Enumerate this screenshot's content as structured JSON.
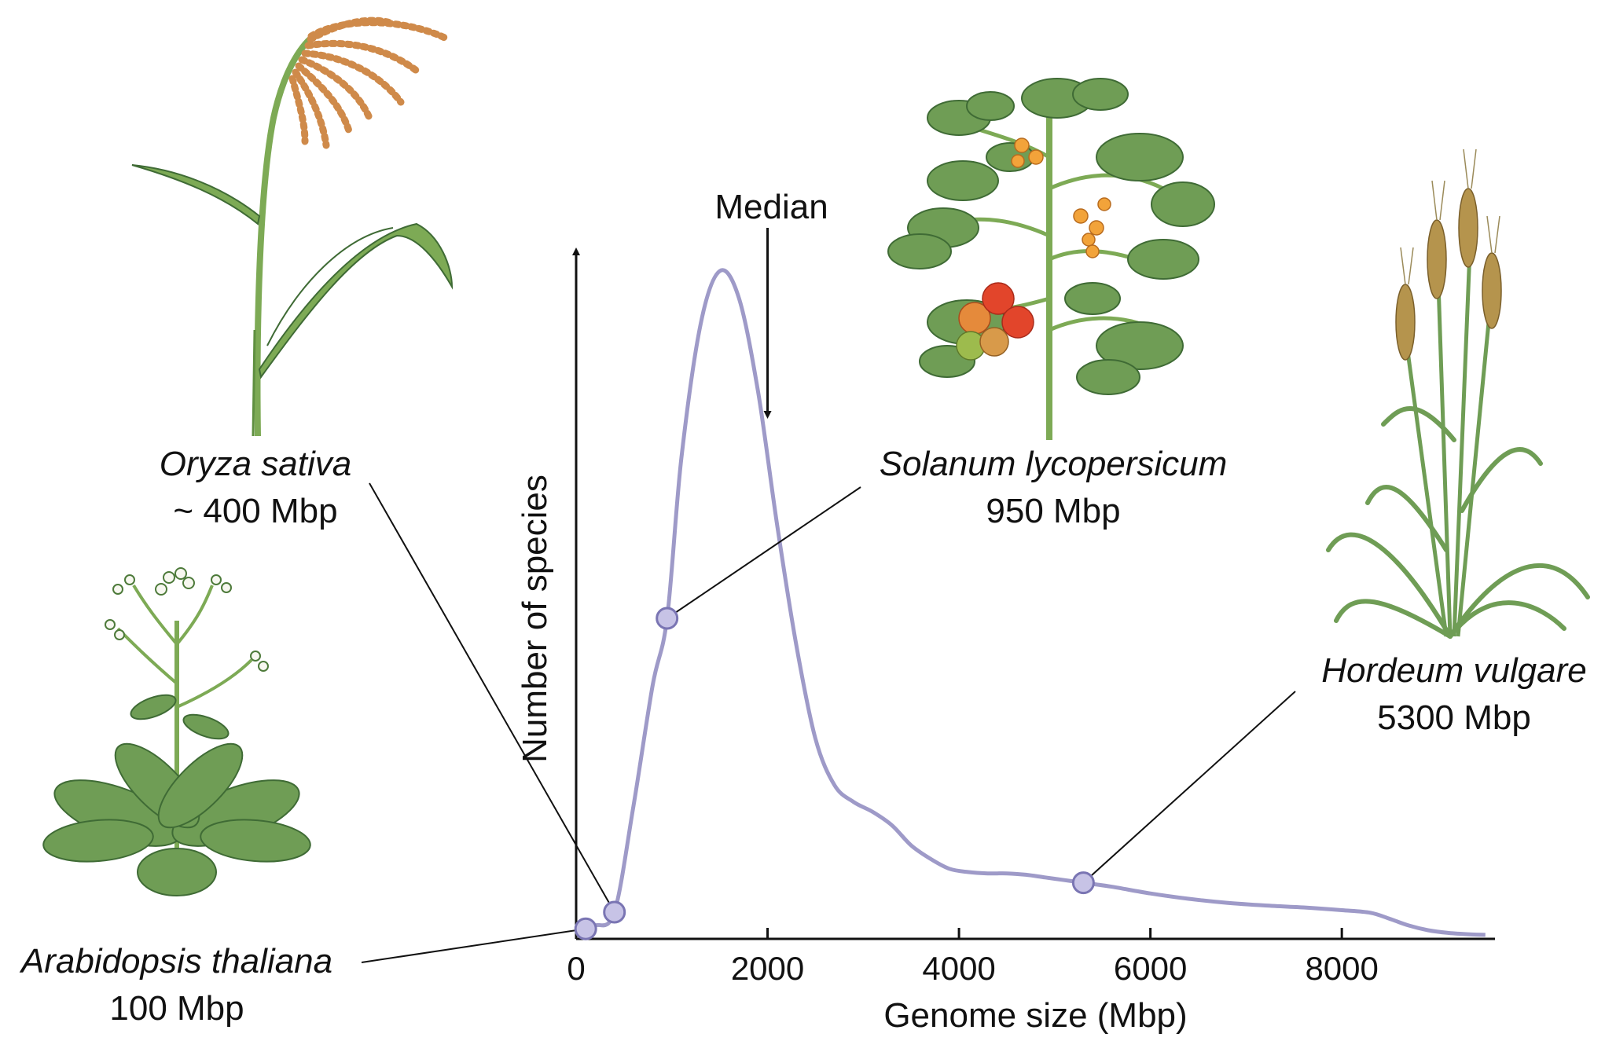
{
  "chart_data": {
    "type": "line",
    "title": "",
    "xlabel": "Genome size (Mbp)",
    "ylabel": "Number of species",
    "xlim": [
      0,
      9600
    ],
    "ylim": [
      0,
      100
    ],
    "xticks": [
      "0",
      "2000",
      "4000",
      "6000",
      "8000"
    ],
    "grid": false,
    "series": [
      {
        "x": [
          0,
          100,
          200,
          400,
          600,
          800,
          950,
          1100,
          1300,
          1500,
          1700,
          1900,
          2100,
          2300,
          2500,
          2700,
          2900,
          3100,
          3300,
          3500,
          3700,
          3900,
          4100,
          4300,
          4500,
          4700,
          4900,
          5100,
          5300,
          5600,
          6000,
          6400,
          6800,
          7200,
          7600,
          8000,
          8300,
          8500,
          8700,
          8900,
          9100,
          9300,
          9500
        ],
        "y": [
          1.0,
          1.5,
          2.0,
          4.0,
          20.0,
          38.0,
          48.0,
          72.0,
          92.0,
          100.0,
          96.0,
          82.0,
          62.0,
          44.0,
          30.0,
          23.0,
          20.5,
          19.0,
          17.0,
          14.0,
          12.0,
          10.5,
          10.0,
          9.8,
          9.8,
          9.6,
          9.2,
          8.8,
          8.4,
          7.8,
          6.8,
          6.0,
          5.4,
          5.0,
          4.7,
          4.3,
          3.9,
          3.0,
          2.0,
          1.3,
          0.9,
          0.7,
          0.6
        ]
      }
    ],
    "annotations": [
      {
        "label": "Median",
        "x": 2000
      }
    ],
    "highlighted_points": [
      {
        "name": "Arabidopsis thaliana",
        "size_label": "100 Mbp",
        "x": 100,
        "y": 1.5
      },
      {
        "name": "Oryza sativa",
        "size_label": "~ 400 Mbp",
        "x": 400,
        "y": 4.0
      },
      {
        "name": "Solanum lycopersicum",
        "size_label": "950 Mbp",
        "x": 950,
        "y": 48.0
      },
      {
        "name": "Hordeum vulgare",
        "size_label": "5300 Mbp",
        "x": 5300,
        "y": 8.4
      }
    ]
  },
  "colors": {
    "curve": "#9e9ac8",
    "point_fill": "#c7c3e6",
    "point_stroke": "#7a75b3",
    "axis": "#111111",
    "leaf_green": "#6f9d55",
    "leaf_dark": "#3f6b35",
    "stem_green": "#7daa55",
    "grain_brown": "#cf8a4a",
    "barley_tan": "#b5944d",
    "tomato_red": "#e2452b",
    "tomato_orange": "#e58a3b",
    "tomato_green": "#9dbb4d",
    "flower_yellow": "#f2a33a"
  },
  "illustrations": [
    {
      "id": "oryza",
      "icon": "rice-plant-icon"
    },
    {
      "id": "arabidopsis",
      "icon": "arabidopsis-plant-icon"
    },
    {
      "id": "solanum",
      "icon": "tomato-plant-icon"
    },
    {
      "id": "hordeum",
      "icon": "barley-plant-icon"
    }
  ]
}
